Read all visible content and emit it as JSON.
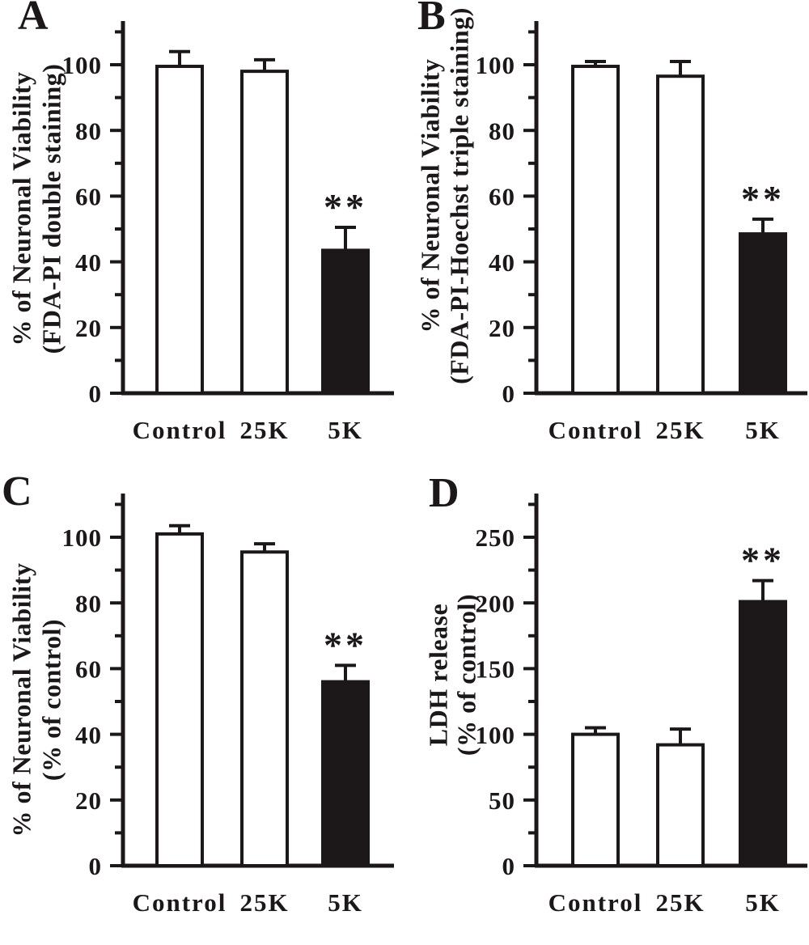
{
  "figure": {
    "background": "#ffffff",
    "ink": "#1c1719",
    "bar_fill_open": "#ffffff",
    "bar_fill_solid": "#1c1719"
  },
  "chart_data": [
    {
      "type": "bar",
      "panel_label": "A",
      "ylabel_lines": [
        "% of Neuronal Viability",
        "(FDA-PI double staining)"
      ],
      "categories": [
        "Control",
        "25K",
        "5K"
      ],
      "values": [
        99.5,
        98,
        43.5
      ],
      "errors_plus": [
        4.5,
        3.5,
        7
      ],
      "significance": [
        "",
        "",
        "**"
      ],
      "bar_style": [
        "open",
        "open",
        "solid"
      ],
      "yticks": [
        0,
        20,
        40,
        60,
        80,
        100
      ],
      "yticks_minor": [
        10,
        30,
        50,
        70,
        90,
        110
      ],
      "ylim": [
        0,
        113
      ],
      "xlabel": "",
      "grid": false,
      "legend": "none"
    },
    {
      "type": "bar",
      "panel_label": "B",
      "ylabel_lines": [
        "% of Neuronal Viability",
        "(FDA-PI-Hoechst triple staining)"
      ],
      "categories": [
        "Control",
        "25K",
        "5K"
      ],
      "values": [
        99.5,
        96.5,
        48.5
      ],
      "errors_plus": [
        1.5,
        4.5,
        4.5
      ],
      "significance": [
        "",
        "",
        "**"
      ],
      "bar_style": [
        "open",
        "open",
        "solid"
      ],
      "yticks": [
        0,
        20,
        40,
        60,
        80,
        100
      ],
      "yticks_minor": [
        10,
        30,
        50,
        70,
        90,
        110
      ],
      "ylim": [
        0,
        113
      ],
      "xlabel": "",
      "grid": false,
      "legend": "none"
    },
    {
      "type": "bar",
      "panel_label": "C",
      "ylabel_lines": [
        "% of Neuronal Viability",
        "(% of control)"
      ],
      "categories": [
        "Control",
        "25K",
        "5K"
      ],
      "values": [
        101,
        95.5,
        56
      ],
      "errors_plus": [
        2.5,
        2.5,
        5
      ],
      "significance": [
        "",
        "",
        "**"
      ],
      "bar_style": [
        "open",
        "open",
        "solid"
      ],
      "yticks": [
        0,
        20,
        40,
        60,
        80,
        100
      ],
      "yticks_minor": [
        10,
        30,
        50,
        70,
        90,
        110
      ],
      "ylim": [
        0,
        113
      ],
      "xlabel": "",
      "grid": false,
      "legend": "none"
    },
    {
      "type": "bar",
      "panel_label": "D",
      "ylabel_lines": [
        "LDH release",
        "(% of control)"
      ],
      "categories": [
        "Control",
        "25K",
        "5K"
      ],
      "values": [
        100,
        92,
        201
      ],
      "errors_plus": [
        5,
        12,
        16
      ],
      "significance": [
        "",
        "",
        "**"
      ],
      "bar_style": [
        "open",
        "open",
        "solid"
      ],
      "yticks": [
        0,
        50,
        100,
        150,
        200,
        250
      ],
      "yticks_minor": [
        25,
        75,
        125,
        175,
        225,
        275
      ],
      "ylim": [
        0,
        283
      ],
      "xlabel": "",
      "grid": false,
      "legend": "none"
    }
  ]
}
